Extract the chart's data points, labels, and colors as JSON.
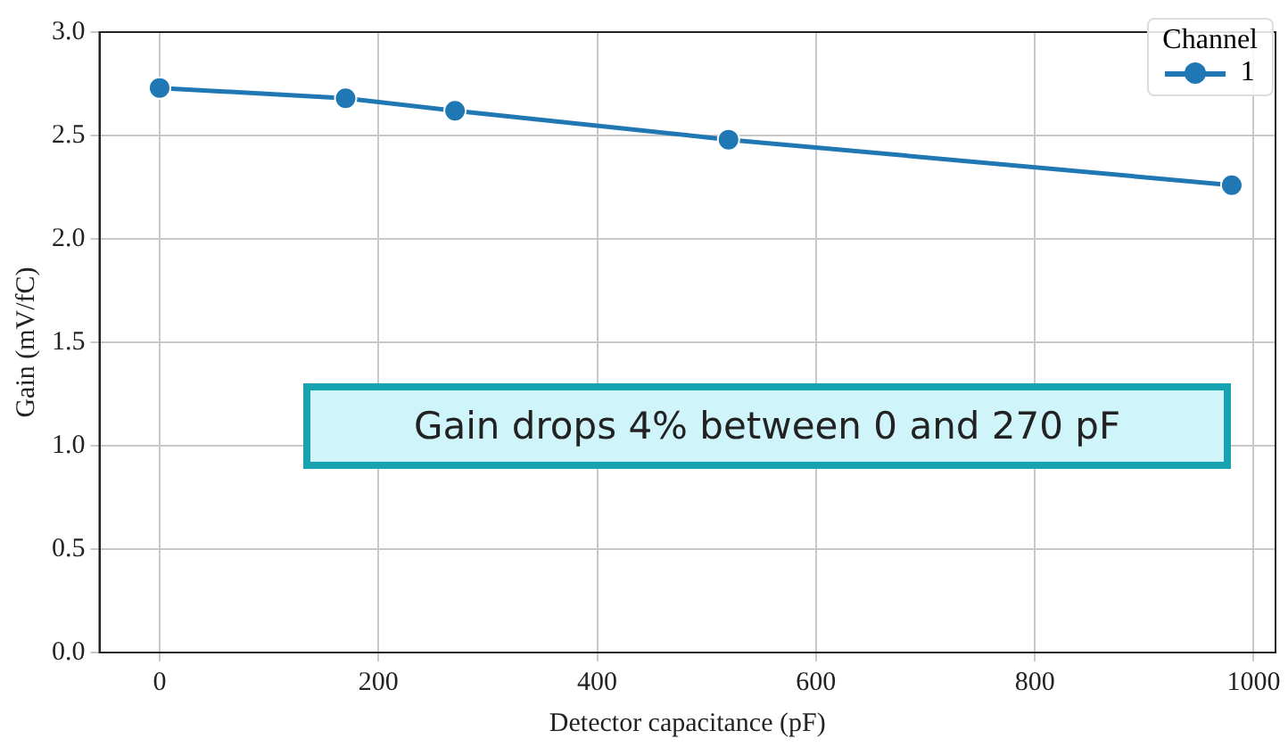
{
  "chart_data": {
    "type": "line",
    "xlabel": "Detector capacitance (pF)",
    "ylabel": "Gain (mV/fC)",
    "legend_title": "Channel",
    "x": [
      0,
      170,
      270,
      520,
      980
    ],
    "series": [
      {
        "name": "1",
        "color": "#1f77b4",
        "values": [
          2.73,
          2.68,
          2.62,
          2.48,
          2.26
        ]
      }
    ],
    "xlim": [
      -55,
      1020
    ],
    "xticks": [
      0,
      200,
      400,
      600,
      800,
      1000
    ],
    "ylim": [
      0,
      3
    ],
    "yticks": [
      {
        "value": 0,
        "label": "0.0"
      },
      {
        "value": 0.5,
        "label": "0.5"
      },
      {
        "value": 1,
        "label": "1.0"
      },
      {
        "value": 1.5,
        "label": "1.5"
      },
      {
        "value": 2,
        "label": "2.0"
      },
      {
        "value": 2.5,
        "label": "2.5"
      },
      {
        "value": 3,
        "label": "3.0"
      }
    ],
    "grid": true,
    "legend": "top right",
    "marker": "circle",
    "line_style": "solid",
    "annotations": [
      "Gain drops 4% between 0 and 270 pF"
    ]
  }
}
